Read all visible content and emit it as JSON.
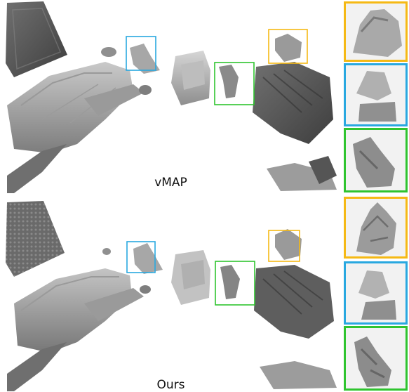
{
  "figure": {
    "top_label": "vMAP",
    "bottom_label": "Ours",
    "box_colors": {
      "yellow": "#f5b915",
      "blue": "#29a8e0",
      "green": "#2fc42f"
    }
  }
}
